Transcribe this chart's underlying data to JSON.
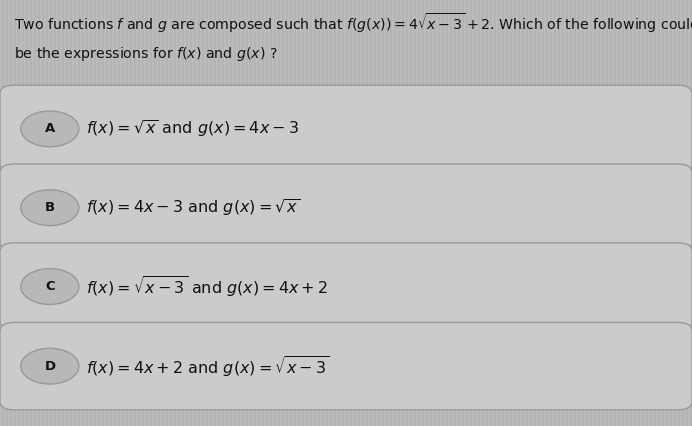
{
  "background_color": "#b8b8b8",
  "box_color": "#cbcbcb",
  "box_edge_color": "#999999",
  "text_color": "#111111",
  "question_text_line1": "Two functions $f$ and $g$ are composed such that $f(g(x)) = 4\\sqrt{x-3}+2$. Which of the following could",
  "question_text_line2": "be the expressions for $f(x)$ and $g(x)$ ?",
  "options": [
    {
      "label": "A",
      "text": "$f(x) = \\sqrt{x}$ and $g(x) = 4x-3$"
    },
    {
      "label": "B",
      "text": "$f(x) = 4x-3$ and $g(x) = \\sqrt{x}$"
    },
    {
      "label": "C",
      "text": "$f(x) = \\sqrt{x-3}$ and $g(x) = 4x+2$"
    },
    {
      "label": "D",
      "text": "$f(x) = 4x+2$ and $g(x) = \\sqrt{x-3}$"
    }
  ],
  "figsize": [
    6.92,
    4.26
  ],
  "dpi": 100,
  "stripe_color": "#bcbcbc",
  "stripe_color2": "#b4b4b4"
}
